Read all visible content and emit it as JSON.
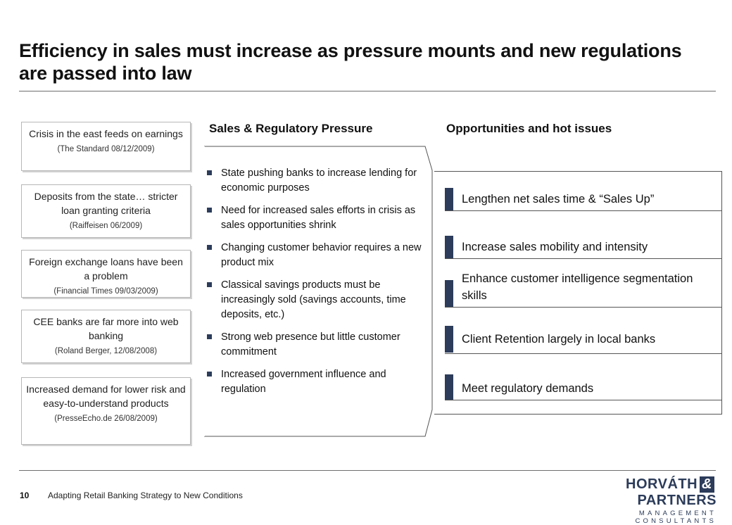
{
  "title": "Efficiency in sales must increase as pressure mounts and new regulations are passed into law",
  "quotes": [
    {
      "text": "Crisis in the east feeds on earnings",
      "source": "(The Standard 08/12/2009)"
    },
    {
      "text": "Deposits from the state… stricter loan granting criteria",
      "source": "(Raiffeisen 06/2009)"
    },
    {
      "text": "Foreign exchange loans have been a problem",
      "source": "(Financial Times 09/03/2009)"
    },
    {
      "text": "CEE banks are far more into web banking",
      "source": "(Roland Berger, 12/08/2008)"
    },
    {
      "text": "Increased demand for lower risk and easy-to-understand products",
      "source": "(PresseEcho.de 26/08/2009)"
    }
  ],
  "pressure": {
    "heading": "Sales & Regulatory Pressure",
    "items": [
      "State pushing banks to increase lending for economic purposes",
      "Need for increased sales efforts in crisis as sales opportunities shrink",
      "Changing customer behavior requires a new product mix",
      "Classical savings products must be increasingly sold (savings accounts, time deposits, etc.)",
      "Strong web presence but little customer commitment",
      "Increased government influence and regulation"
    ]
  },
  "opportunities": {
    "heading": "Opportunities and hot issues",
    "items": [
      "Lengthen net sales time & “Sales Up”",
      "Increase sales mobility and intensity",
      "Enhance customer intelligence segmentation skills",
      "Client Retention largely in local banks",
      "Meet regulatory demands"
    ]
  },
  "footer": {
    "page_number": "10",
    "text": "Adapting Retail Banking Strategy to New Conditions"
  },
  "logo": {
    "line1_a": "HORVÁTH",
    "line1_amp": "&",
    "line1_b": "PARTNERS",
    "line2": "MANAGEMENT CONSULTANTS"
  },
  "colors": {
    "accent": "#2c3c5a",
    "rule": "#6e6e6e"
  }
}
